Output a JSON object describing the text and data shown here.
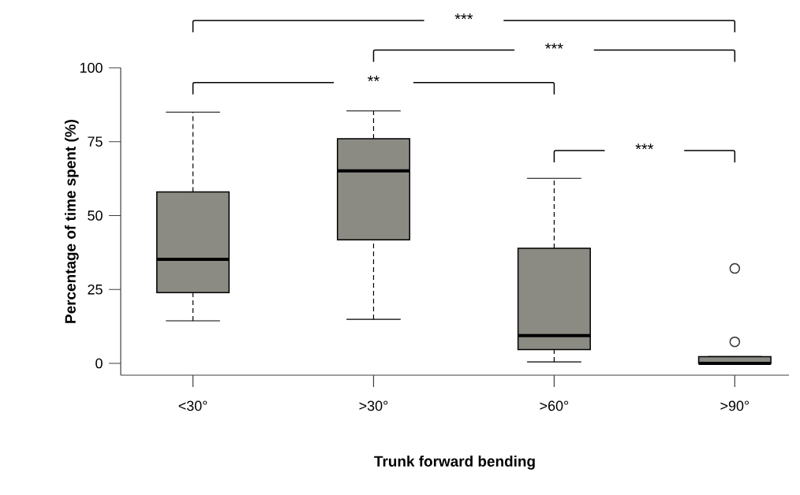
{
  "chart_data": {
    "type": "box",
    "xlabel": "Trunk forward bending",
    "ylabel": "Percentage of time spent (%)",
    "categories": [
      "<30°",
      ">30°",
      ">60°",
      ">90°"
    ],
    "color": "#8b8b83",
    "boxes": [
      {
        "low": 14.4,
        "q1": 23.9,
        "median": 35.2,
        "q3": 58,
        "high": 85
      },
      {
        "low": 14.9,
        "q1": 41.8,
        "median": 65.1,
        "q3": 76,
        "high": 85.4
      },
      {
        "low": 0.5,
        "q1": 4.7,
        "median": 9.4,
        "q3": 38.9,
        "high": 62.6
      },
      {
        "low": 0,
        "q1": 0,
        "median": 0,
        "q3": 2.3,
        "high": 2.3,
        "outliers": [
          32.1,
          7.3
        ]
      }
    ],
    "ylim": [
      -4,
      100
    ],
    "yticks": [
      0,
      25,
      50,
      75,
      100
    ],
    "marker": "circle",
    "annotations": [
      "***",
      "***",
      "**",
      "***"
    ]
  }
}
